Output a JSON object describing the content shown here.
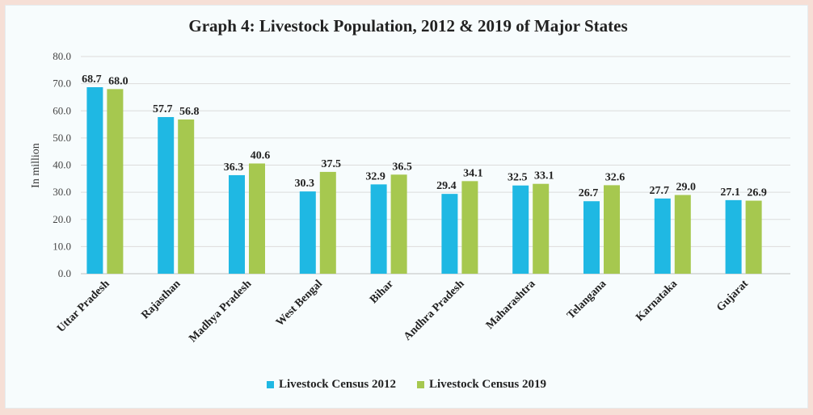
{
  "chart_data": {
    "type": "bar",
    "title": "Graph 4: Livestock Population, 2012 & 2019 of Major States",
    "xlabel": "",
    "ylabel": "In million",
    "ylim": [
      0,
      80
    ],
    "yticks": [
      "0.0",
      "10.0",
      "20.0",
      "30.0",
      "40.0",
      "50.0",
      "60.0",
      "70.0",
      "80.0"
    ],
    "grid": true,
    "legend_position": "bottom",
    "categories": [
      "Uttar Pradesh",
      "Rajasthan",
      "Madhya Pradesh",
      "West Bengal",
      "Bihar",
      "Andhra Pradesh",
      "Maharashtra",
      "Telangana",
      "Karnataka",
      "Gujarat"
    ],
    "series": [
      {
        "name": "Livestock Census 2012",
        "color": "#1fb8e3",
        "values": [
          68.7,
          57.7,
          36.3,
          30.3,
          32.9,
          29.4,
          32.5,
          26.7,
          27.7,
          27.1
        ]
      },
      {
        "name": "Livestock Census 2019",
        "color": "#a6c84f",
        "values": [
          68.0,
          56.8,
          40.6,
          37.5,
          36.5,
          34.1,
          33.1,
          32.6,
          29.0,
          26.9
        ]
      }
    ]
  }
}
